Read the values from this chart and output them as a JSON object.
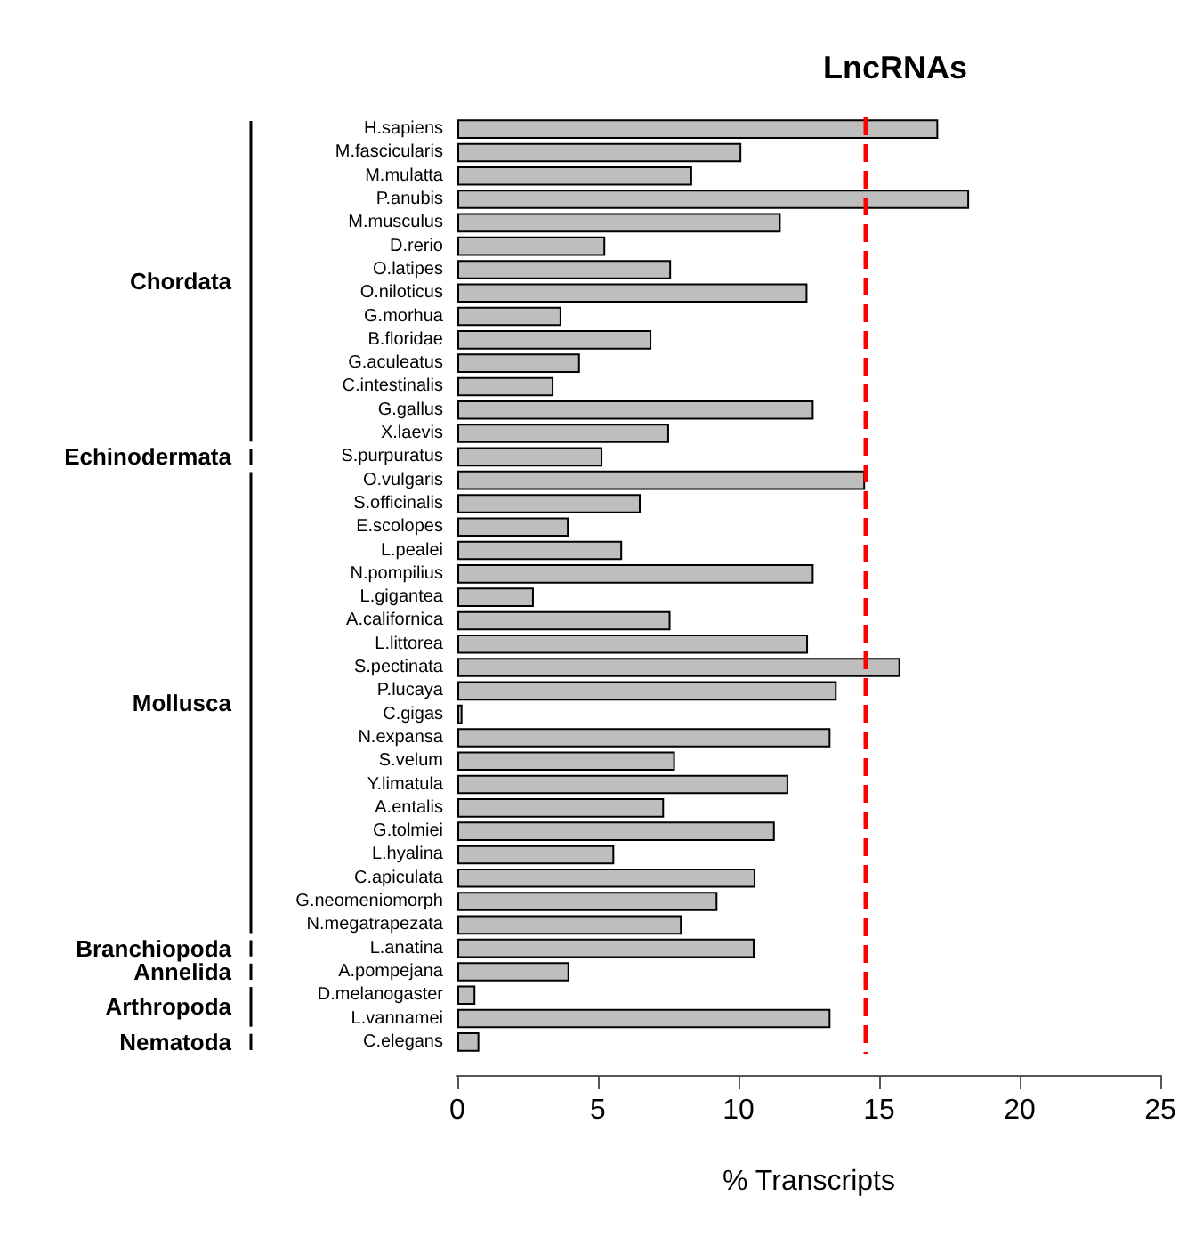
{
  "chart_data": {
    "type": "bar",
    "orientation": "horizontal",
    "title": "LncRNAs",
    "xlabel": "% Transcripts",
    "categories": [
      "H.sapiens",
      "M.fascicularis",
      "M.mulatta",
      "P.anubis",
      "M.musculus",
      "D.rerio",
      "O.latipes",
      "O.niloticus",
      "G.morhua",
      "B.floridae",
      "G.aculeatus",
      "C.intestinalis",
      "G.gallus",
      "X.laevis",
      "S.purpuratus",
      "O.vulgaris",
      "S.officinalis",
      "E.scolopes",
      "L.pealei",
      "N.pompilius",
      "L.gigantea",
      "A.californica",
      "L.littorea",
      "S.pectinata",
      "P.lucaya",
      "C.gigas",
      "N.expansa",
      "S.velum",
      "Y.limatula",
      "A.entalis",
      "G.tolmiei",
      "L.hyalina",
      "C.apiculata",
      "G.neomeniomorph",
      "N.megatrapezata",
      "L.anatina",
      "A.pompejana",
      "D.melanogaster",
      "L.vannamei",
      "C.elegans"
    ],
    "values": [
      17.1,
      10.1,
      8.35,
      18.2,
      11.5,
      5.26,
      7.6,
      12.45,
      3.7,
      6.9,
      4.36,
      3.42,
      12.67,
      7.53,
      5.16,
      14.5,
      6.52,
      3.96,
      5.86,
      12.67,
      2.72,
      7.58,
      12.47,
      15.75,
      13.49,
      0.18,
      13.27,
      7.74,
      11.77,
      7.35,
      11.29,
      5.58,
      10.6,
      9.25,
      7.98,
      10.57,
      3.98,
      0.64,
      13.27,
      0.78
    ],
    "color": "#bebebe",
    "xlim": [
      0,
      25
    ],
    "xticks": [
      0,
      5,
      10,
      15,
      20,
      25
    ],
    "grid": false,
    "ref_lines": [
      {
        "axis": "x",
        "value": 14.5,
        "color": "#ff0000",
        "line_style": "dashed"
      }
    ],
    "annotations": [
      "Chordata",
      "Echinodermata",
      "Mollusca",
      "Branchiopoda",
      "Annelida",
      "Arthropoda",
      "Nematoda"
    ]
  }
}
